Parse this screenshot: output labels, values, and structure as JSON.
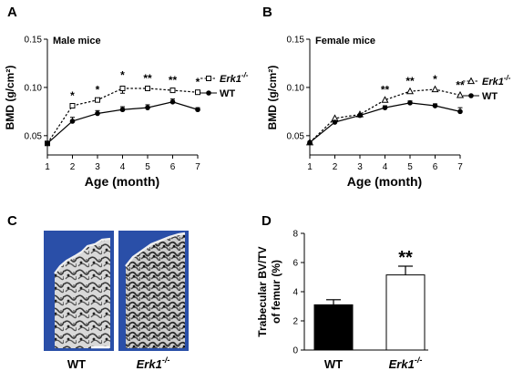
{
  "panel_labels": {
    "a": "A",
    "b": "B",
    "c": "C",
    "d": "D"
  },
  "chart_data": [
    {
      "type": "line",
      "panel": "A",
      "inner_label": "Male mice",
      "xlabel": "Age (month)",
      "ylabel": "BMD (g/cm²)",
      "x": [
        1,
        2,
        3,
        4,
        5,
        6,
        7
      ],
      "xlim": [
        1,
        7
      ],
      "ylim": [
        0.03,
        0.15
      ],
      "yticks": [
        0.05,
        0.1,
        0.15
      ],
      "ytick_labels": [
        "0.05",
        "0.10",
        "0.15"
      ],
      "series": [
        {
          "name": "Erk1",
          "name_sup": "-/-",
          "style": "dashed",
          "marker": "open-square",
          "values": [
            0.042,
            0.081,
            0.087,
            0.099,
            0.099,
            0.097,
            0.095
          ],
          "errors": [
            0.001,
            0.002,
            0.002,
            0.005,
            0.002,
            0.002,
            0.002
          ]
        },
        {
          "name": "WT",
          "style": "solid",
          "marker": "filled-circle",
          "values": [
            0.042,
            0.065,
            0.073,
            0.077,
            0.079,
            0.085,
            0.077
          ],
          "errors": [
            0.001,
            0.004,
            0.003,
            0.003,
            0.003,
            0.003,
            0.002
          ]
        }
      ],
      "annotations": [
        "",
        "*",
        "*",
        "*",
        "**",
        "**",
        "*"
      ],
      "legend_position": "right"
    },
    {
      "type": "line",
      "panel": "B",
      "inner_label": "Female mice",
      "xlabel": "Age (month)",
      "ylabel": "BMD (g/cm²)",
      "x": [
        1,
        2,
        3,
        4,
        5,
        6,
        7
      ],
      "xlim": [
        1,
        7
      ],
      "ylim": [
        0.03,
        0.15
      ],
      "yticks": [
        0.05,
        0.1,
        0.15
      ],
      "ytick_labels": [
        "0.05",
        "0.10",
        "0.15"
      ],
      "series": [
        {
          "name": "Erk1",
          "name_sup": "-/-",
          "style": "dashed",
          "marker": "open-triangle",
          "values": [
            0.043,
            0.068,
            0.072,
            0.087,
            0.096,
            0.098,
            0.092
          ],
          "errors": [
            0.001,
            0.001,
            0.001,
            0.002,
            0.002,
            0.002,
            0.002
          ]
        },
        {
          "name": "WT",
          "style": "solid",
          "marker": "filled-circle",
          "values": [
            0.043,
            0.064,
            0.071,
            0.079,
            0.084,
            0.081,
            0.075
          ],
          "errors": [
            0.001,
            0.001,
            0.001,
            0.002,
            0.002,
            0.002,
            0.004
          ]
        }
      ],
      "annotations": [
        "",
        "",
        "",
        "**",
        "**",
        "*",
        "**"
      ],
      "legend_position": "right"
    },
    {
      "type": "bar",
      "panel": "D",
      "ylabel_lines": [
        "Trabecular BV/TV",
        "of femur (%)"
      ],
      "categories": [
        "WT",
        "Erk1"
      ],
      "category_sups": [
        "",
        "-/-"
      ],
      "values": [
        3.1,
        5.15
      ],
      "errors": [
        0.35,
        0.6
      ],
      "colors": [
        "#000000",
        "#ffffff"
      ],
      "ylim": [
        0,
        8
      ],
      "yticks": [
        0,
        2,
        4,
        6,
        8
      ],
      "ytick_labels": [
        "0",
        "2",
        "4",
        "6",
        "8"
      ],
      "annotations": [
        "",
        "**"
      ]
    }
  ],
  "micro_ct": {
    "images": [
      {
        "label": "WT",
        "sup": ""
      },
      {
        "label": "Erk1",
        "sup": "-/-"
      }
    ],
    "background_color": "#2a4fa8"
  }
}
